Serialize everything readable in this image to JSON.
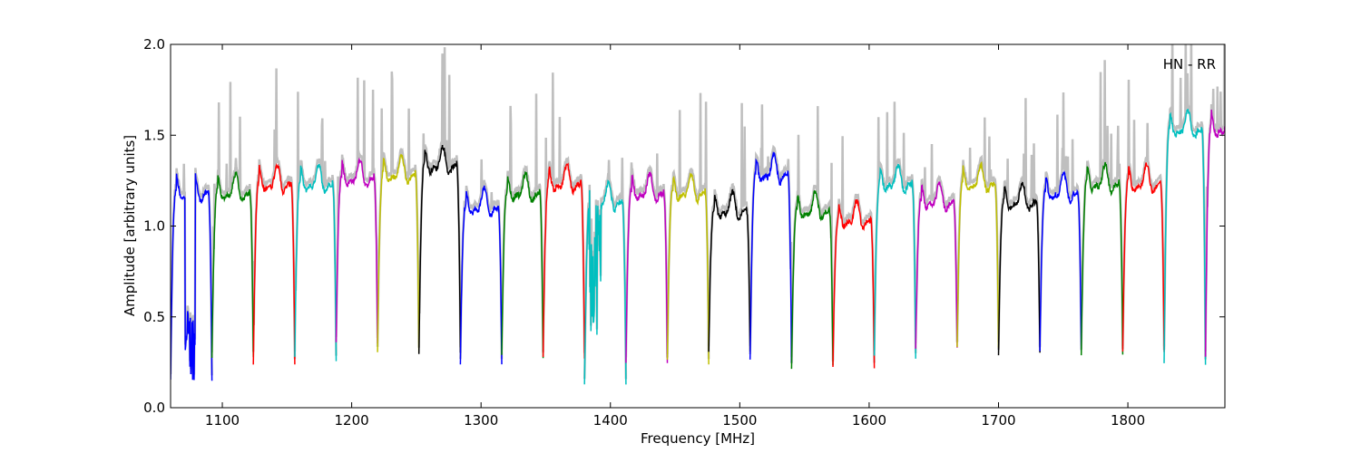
{
  "chart_data": {
    "type": "line",
    "title": "",
    "xlabel": "Frequency [MHz]",
    "ylabel": "Amplitude [arbitrary units]",
    "xlim": [
      1060,
      1875
    ],
    "ylim": [
      0.0,
      2.0
    ],
    "xticks": [
      1100,
      1200,
      1300,
      1400,
      1500,
      1600,
      1700,
      1800
    ],
    "yticks": [
      0.0,
      0.5,
      1.0,
      1.5,
      2.0
    ],
    "ytick_labels": [
      "0.0",
      "0.5",
      "1.0",
      "1.5",
      "2.0"
    ],
    "grid": false,
    "annotation": "HN - RR",
    "background_color": "#bfbfbf",
    "color_cycle": [
      "#0000ff",
      "#008000",
      "#ff0000",
      "#00bfbf",
      "#bf00bf",
      "#bfbf00",
      "#000000"
    ],
    "band_width_mhz": 32,
    "band_starts_mhz": [
      1060,
      1092,
      1124,
      1156,
      1188,
      1220,
      1252,
      1284,
      1316,
      1348,
      1380,
      1412,
      1444,
      1476,
      1508,
      1540,
      1572,
      1604,
      1636,
      1668,
      1700,
      1732,
      1764,
      1796,
      1828,
      1860
    ],
    "band_colors": [
      "#0000ff",
      "#008000",
      "#ff0000",
      "#00bfbf",
      "#bf00bf",
      "#bfbf00",
      "#000000",
      "#0000ff",
      "#008000",
      "#ff0000",
      "#00bfbf",
      "#bf00bf",
      "#bfbf00",
      "#000000",
      "#0000ff",
      "#008000",
      "#ff0000",
      "#00bfbf",
      "#bf00bf",
      "#bfbf00",
      "#000000",
      "#0000ff",
      "#008000",
      "#ff0000",
      "#00bfbf",
      "#bf00bf"
    ],
    "band_levels": [
      1.2,
      1.2,
      1.25,
      1.25,
      1.28,
      1.3,
      1.35,
      1.12,
      1.2,
      1.25,
      1.15,
      1.2,
      1.2,
      1.1,
      1.3,
      1.1,
      1.05,
      1.25,
      1.15,
      1.25,
      1.15,
      1.2,
      1.25,
      1.25,
      1.55,
      1.55
    ],
    "band_minima": [
      0.15,
      0.28,
      0.25,
      0.27,
      0.35,
      0.3,
      0.3,
      0.25,
      0.28,
      0.27,
      0.14,
      0.25,
      0.25,
      0.3,
      0.25,
      0.22,
      0.22,
      0.28,
      0.33,
      0.32,
      0.3,
      0.3,
      0.3,
      0.3,
      0.25,
      0.28
    ]
  }
}
